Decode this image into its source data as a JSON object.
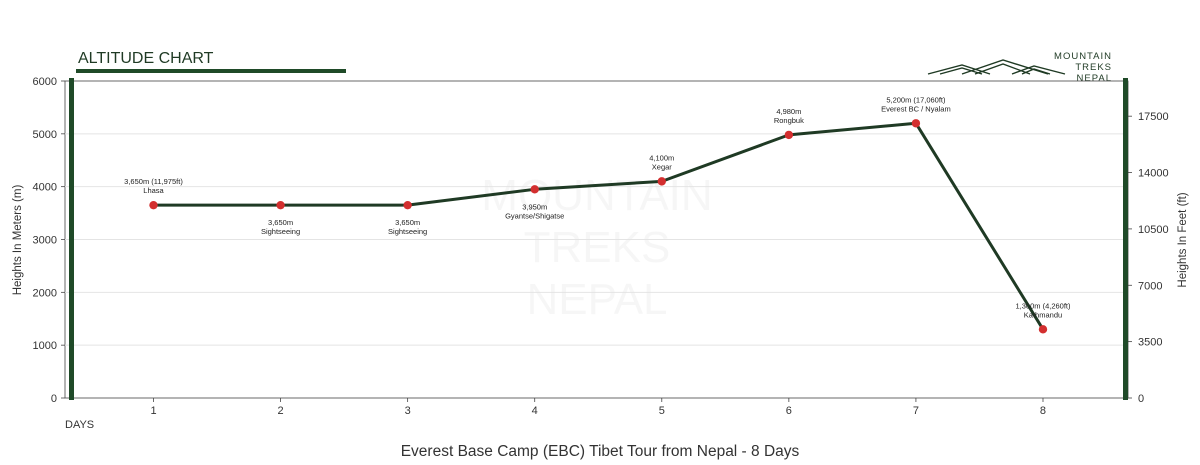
{
  "chart_data": {
    "type": "line",
    "title": "ALTITUDE CHART",
    "subtitle": "Everest Base Camp (EBC) Tibet Tour from Nepal - 8 Days",
    "xlabel": "DAYS",
    "ylabel": "Heights In Meters (m)",
    "y2label": "Heights In Feet (ft)",
    "ylim": [
      0,
      6000
    ],
    "y2lim": [
      0,
      19685
    ],
    "yticks": [
      0,
      1000,
      2000,
      3000,
      4000,
      5000,
      6000
    ],
    "y2ticks": [
      0,
      3500,
      7000,
      10500,
      14000,
      17500
    ],
    "x": [
      1,
      2,
      3,
      4,
      5,
      6,
      7,
      8
    ],
    "grid": "horizontal",
    "colors": {
      "line": "#1f3a24",
      "point": "#d32f2f",
      "accent": "#1f4a28"
    },
    "series": [
      {
        "values": [
          3650,
          3650,
          3650,
          3950,
          4100,
          4980,
          5200,
          1300
        ],
        "labels": [
          {
            "line1": "3,650m (11,975ft)",
            "line2": "Lhasa",
            "pos": "above"
          },
          {
            "line1": "3,650m",
            "line2": "Sightseeing",
            "pos": "below"
          },
          {
            "line1": "3,650m",
            "line2": "Sightseeing",
            "pos": "below"
          },
          {
            "line1": "3,950m",
            "line2": "Gyantse/Shigatse",
            "pos": "below"
          },
          {
            "line1": "4,100m",
            "line2": "Xegar",
            "pos": "above"
          },
          {
            "line1": "4,980m",
            "line2": "Rongbuk",
            "pos": "above"
          },
          {
            "line1": "5,200m (17,060ft)",
            "line2": "Everest BC / Nyalam",
            "pos": "above"
          },
          {
            "line1": "1,300m (4,260ft)",
            "line2": "Kathmandu",
            "pos": "above"
          }
        ]
      }
    ]
  },
  "logo": {
    "line1": "MOUNTAIN",
    "line2": "TREKS",
    "line3": "NEPAL",
    "icon": "mountain-peaks-icon"
  },
  "watermark": {
    "line1": "MOUNTAIN",
    "line2": "TREKS",
    "line3": "NEPAL"
  }
}
